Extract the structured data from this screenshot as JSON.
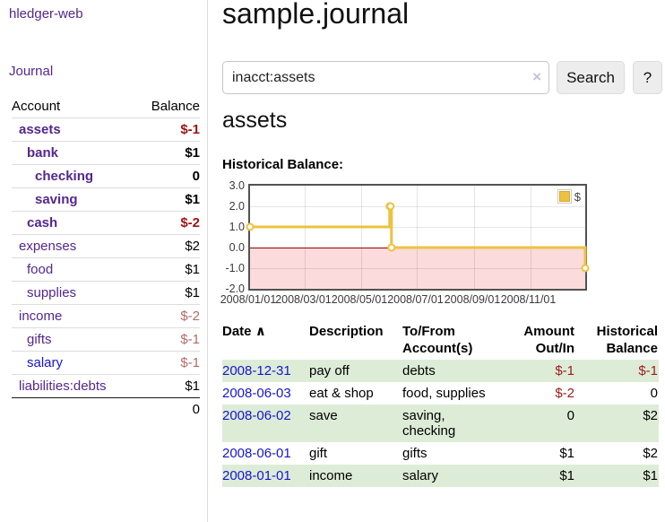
{
  "colors": {
    "link_purple": "#54278f",
    "link_blue": "#1515d0",
    "negative_strong": "#9b1414",
    "negative_soft": "#b36a6a",
    "register_negative": "#9b1c1c",
    "row_stripe_green": "#ddecd7",
    "chart_line": "#edc240",
    "chart_negative_region": "#fbdbdb",
    "chart_zero_line": "#990000",
    "chart_grid": "rgba(0,0,0,0.10)",
    "button_bg": "#ededed",
    "button_border": "#dcdcdc",
    "clear_icon": "#c9c0dd"
  },
  "app": {
    "title": "hledger-web"
  },
  "sidebar": {
    "nav_journal_label": "Journal",
    "accounts": {
      "headers": [
        "Account",
        "Balance"
      ],
      "rows": [
        {
          "account": "assets",
          "depth": 1,
          "bold": true,
          "balance": "$-1",
          "negative": true,
          "link_color": "purple"
        },
        {
          "account": "bank",
          "depth": 2,
          "bold": true,
          "balance": "$1",
          "negative": false,
          "link_color": "purple"
        },
        {
          "account": "checking",
          "depth": 3,
          "bold": true,
          "balance": "0",
          "negative": false,
          "link_color": "purple"
        },
        {
          "account": "saving",
          "depth": 3,
          "bold": true,
          "balance": "$1",
          "negative": false,
          "link_color": "purple"
        },
        {
          "account": "cash",
          "depth": 2,
          "bold": true,
          "balance": "$-2",
          "negative": true,
          "link_color": "purple"
        },
        {
          "account": "expenses",
          "depth": 1,
          "bold": false,
          "balance": "$2",
          "negative": false,
          "link_color": "purple"
        },
        {
          "account": "food",
          "depth": 2,
          "bold": false,
          "balance": "$1",
          "negative": false,
          "link_color": "purple"
        },
        {
          "account": "supplies",
          "depth": 2,
          "bold": false,
          "balance": "$1",
          "negative": false,
          "link_color": "purple"
        },
        {
          "account": "income",
          "depth": 1,
          "bold": false,
          "balance": "$-2",
          "negative": true,
          "link_color": "purple"
        },
        {
          "account": "gifts",
          "depth": 2,
          "bold": false,
          "balance": "$-1",
          "negative": true,
          "link_color": "purple"
        },
        {
          "account": "salary",
          "depth": 2,
          "bold": false,
          "balance": "$-1",
          "negative": true,
          "link_color": "blue"
        },
        {
          "account": "liabilities:debts",
          "depth": 1,
          "bold": false,
          "balance": "$1",
          "negative": false,
          "link_color": "purple"
        }
      ],
      "total": "0"
    }
  },
  "main": {
    "title": "sample.journal",
    "search": {
      "value": "inacct:assets",
      "clear_icon": "×",
      "button_label": "Search",
      "help_label": "?"
    },
    "account_heading": "assets",
    "chart_label": "Historical Balance:"
  },
  "chart_data": {
    "type": "line",
    "step": true,
    "title": "Historical Balance:",
    "series": [
      {
        "name": "$",
        "color": "#edc240",
        "points": [
          [
            "2008-01-01",
            1
          ],
          [
            "2008-06-01",
            2
          ],
          [
            "2008-06-02",
            2
          ],
          [
            "2008-06-03",
            0
          ],
          [
            "2008-12-31",
            -1
          ]
        ]
      }
    ],
    "xmin": "2008-01-01",
    "xmax": "2008-12-31",
    "ylim": [
      -2,
      3
    ],
    "y_ticks": [
      {
        "v": 3,
        "label": "3.0"
      },
      {
        "v": 2,
        "label": "2.0"
      },
      {
        "v": 1,
        "label": "1.0"
      },
      {
        "v": 0,
        "label": "0.0"
      },
      {
        "v": -1,
        "label": "-1.0"
      },
      {
        "v": -2,
        "label": "-2.0"
      }
    ],
    "x_ticks": [
      {
        "date": "2008-01-01",
        "label": "2008/01/01"
      },
      {
        "date": "2008-03-01",
        "label": "2008/03/01"
      },
      {
        "date": "2008-05-01",
        "label": "2008/05/01"
      },
      {
        "date": "2008-07-01",
        "label": "2008/07/01"
      },
      {
        "date": "2008-09-01",
        "label": "2008/09/01"
      },
      {
        "date": "2008-11-01",
        "label": "2008/11/01"
      }
    ],
    "grid": true,
    "legend_position": "top-right",
    "negative_region_shaded": true
  },
  "register": {
    "headers": [
      "Date",
      "Description",
      "To/From Account(s)",
      "Amount Out/In",
      "Historical Balance"
    ],
    "sort_icon": "∧",
    "rows": [
      {
        "date": "2008-12-31",
        "description": "pay off",
        "accounts": "debts",
        "amount": "$-1",
        "amount_negative": true,
        "balance": "$-1",
        "balance_negative": true
      },
      {
        "date": "2008-06-03",
        "description": "eat & shop",
        "accounts": "food, supplies",
        "amount": "$-2",
        "amount_negative": true,
        "balance": "0",
        "balance_negative": false
      },
      {
        "date": "2008-06-02",
        "description": "save",
        "accounts": "saving, checking",
        "amount": "0",
        "amount_negative": false,
        "balance": "$2",
        "balance_negative": false
      },
      {
        "date": "2008-06-01",
        "description": "gift",
        "accounts": "gifts",
        "amount": "$1",
        "amount_negative": false,
        "balance": "$2",
        "balance_negative": false
      },
      {
        "date": "2008-01-01",
        "description": "income",
        "accounts": "salary",
        "amount": "$1",
        "amount_negative": false,
        "balance": "$1",
        "balance_negative": false
      }
    ]
  }
}
